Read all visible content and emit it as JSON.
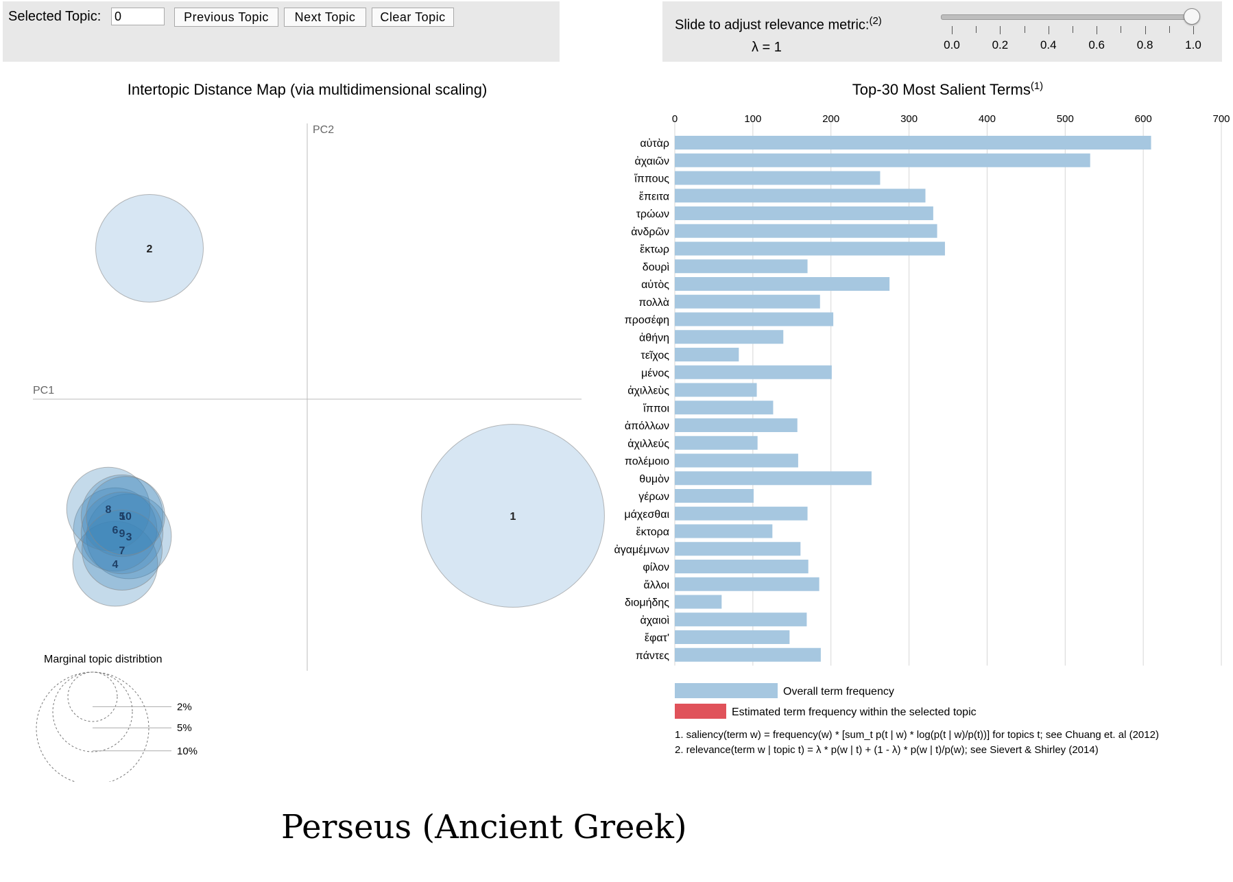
{
  "controls": {
    "selected_topic_label": "Selected Topic:",
    "selected_topic_value": "0",
    "prev_button": "Previous Topic",
    "next_button": "Next Topic",
    "clear_button": "Clear Topic"
  },
  "slider": {
    "label": "Slide to adjust relevance metric:",
    "label_note": "(2)",
    "lambda_text": "λ = 1",
    "value": 1.0,
    "ticks": [
      "0.0",
      "0.2",
      "0.4",
      "0.6",
      "0.8",
      "1.0"
    ]
  },
  "map": {
    "title": "Intertopic Distance Map (via multidimensional scaling)",
    "pc1": "PC1",
    "pc2": "PC2",
    "marginal_title": "Marginal topic distribtion",
    "marginal_labels": [
      "2%",
      "5%",
      "10%"
    ]
  },
  "bars": {
    "title": "Top-30 Most Salient Terms",
    "title_note": "(1)",
    "legend_overall": "Overall term frequency",
    "legend_topic": "Estimated term frequency within the selected topic",
    "footnote1": "1. saliency(term w) = frequency(w) * [sum_t p(t | w) * log(p(t | w)/p(t))] for topics t; see Chuang et. al (2012)",
    "footnote2": "2. relevance(term w | topic t) = λ * p(w | t) + (1 - λ) * p(w | t)/p(w); see Sievert & Shirley (2014)"
  },
  "caption": "Perseus (Ancient Greek)",
  "chart_data": [
    {
      "type": "scatter",
      "title": "Intertopic Distance Map (via multidimensional scaling)",
      "xlabel": "PC1",
      "ylabel": "PC2",
      "points": [
        {
          "topic": "1",
          "x": 0.3,
          "y": -0.17,
          "size_pct": 13.0
        },
        {
          "topic": "2",
          "x": -0.23,
          "y": 0.22,
          "size_pct": 4.5
        },
        {
          "topic": "3",
          "x": -0.26,
          "y": -0.2,
          "size_pct": 2.8
        },
        {
          "topic": "4",
          "x": -0.28,
          "y": -0.24,
          "size_pct": 2.8
        },
        {
          "topic": "5",
          "x": -0.27,
          "y": -0.17,
          "size_pct": 2.6
        },
        {
          "topic": "6",
          "x": -0.28,
          "y": -0.19,
          "size_pct": 2.7
        },
        {
          "topic": "7",
          "x": -0.27,
          "y": -0.22,
          "size_pct": 2.5
        },
        {
          "topic": "8",
          "x": -0.29,
          "y": -0.16,
          "size_pct": 2.7
        },
        {
          "topic": "9",
          "x": -0.27,
          "y": -0.195,
          "size_pct": 2.6
        },
        {
          "topic": "10",
          "x": -0.265,
          "y": -0.17,
          "size_pct": 2.4
        }
      ],
      "marginal_legend": [
        "2%",
        "5%",
        "10%"
      ]
    },
    {
      "type": "bar",
      "orientation": "horizontal",
      "title": "Top-30 Most Salient Terms",
      "xlim": [
        0,
        700
      ],
      "xticks": [
        0,
        100,
        200,
        300,
        400,
        500,
        600,
        700
      ],
      "categories": [
        "αὐτὰρ",
        "ἀχαιῶν",
        "ἵππους",
        "ἔπειτα",
        "τρώων",
        "ἀνδρῶν",
        "ἕκτωρ",
        "δουρὶ",
        "αὐτὸς",
        "πολλὰ",
        "προσέφη",
        "ἀθήνη",
        "τεῖχος",
        "μένος",
        "ἀχιλλεὺς",
        "ἵπποι",
        "ἀπόλλων",
        "ἀχιλλεύς",
        "πολέμοιο",
        "θυμὸν",
        "γέρων",
        "μάχεσθαι",
        "ἕκτορα",
        "ἀγαμέμνων",
        "φίλον",
        "ἄλλοι",
        "διομήδης",
        "ἀχαιοὶ",
        "ἔφατ'",
        "πάντες"
      ],
      "series": [
        {
          "name": "Overall term frequency",
          "values": [
            610,
            532,
            263,
            321,
            331,
            336,
            346,
            170,
            275,
            186,
            203,
            139,
            82,
            201,
            105,
            126,
            157,
            106,
            158,
            252,
            101,
            170,
            125,
            161,
            171,
            185,
            60,
            169,
            147,
            187
          ]
        }
      ]
    }
  ]
}
